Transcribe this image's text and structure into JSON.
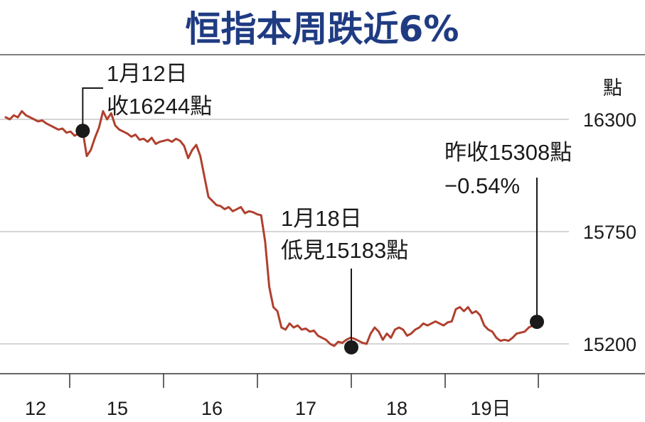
{
  "chart_data": {
    "type": "line",
    "title": "恒指本周跌近6%",
    "unit_label": "點",
    "y_ticks": [
      15200,
      15750,
      16300
    ],
    "ylim": [
      15100,
      16600
    ],
    "x_ticks": [
      "12",
      "15",
      "16",
      "17",
      "18",
      "19日"
    ],
    "series_color": "#b0402e",
    "title_color": "#1f3b82",
    "series": [
      {
        "values": [
          16310,
          16300,
          16320,
          16310,
          16340,
          16320,
          16310,
          16300,
          16290,
          16295,
          16280,
          16270,
          16260,
          16250,
          16255,
          16235,
          16240,
          16220,
          16230,
          16244,
          16120,
          16150,
          16210,
          16260,
          16340,
          16300,
          16330,
          16270,
          16250,
          16240,
          16230,
          16215,
          16225,
          16200,
          16205,
          16190,
          16210,
          16180,
          16190,
          16195,
          16200,
          16190,
          16205,
          16195,
          16170,
          16110,
          16150,
          16175,
          16120,
          16020,
          15920,
          15900,
          15880,
          15875,
          15860,
          15870,
          15850,
          15860,
          15870,
          15840,
          15850,
          15845,
          15835,
          15830,
          15700,
          15480,
          15380,
          15360,
          15280,
          15270,
          15300,
          15280,
          15290,
          15270,
          15275,
          15260,
          15265,
          15240,
          15230,
          15220,
          15200,
          15190,
          15210,
          15205,
          15220,
          15230,
          15225,
          15215,
          15205,
          15200,
          15250,
          15280,
          15260,
          15220,
          15250,
          15230,
          15270,
          15280,
          15270,
          15240,
          15250,
          15270,
          15280,
          15300,
          15290,
          15300,
          15310,
          15300,
          15290,
          15305,
          15310,
          15370,
          15380,
          15360,
          15380,
          15350,
          15360,
          15340,
          15290,
          15270,
          15260,
          15230,
          15215,
          15220,
          15215,
          15230,
          15250,
          15255,
          15260,
          15280,
          15290,
          15308
        ]
      }
    ],
    "annotations": [
      {
        "label_line1": "1月12日",
        "label_line2": "收16244點",
        "value": 16244
      },
      {
        "label_line1": "1月18日",
        "label_line2": "低見15183點",
        "value": 15183
      },
      {
        "label_line1": "昨收15308點",
        "label_line2": "−0.54%",
        "value": 15308
      }
    ]
  }
}
